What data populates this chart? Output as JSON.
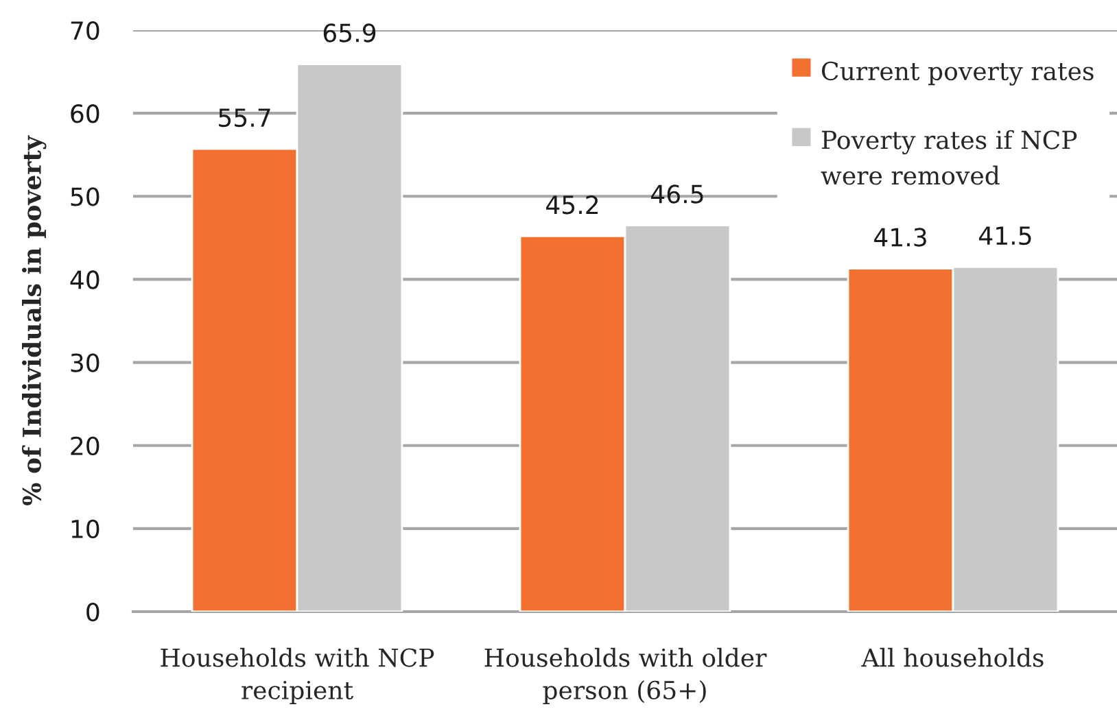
{
  "chart_data": {
    "type": "bar",
    "ylabel": "% of Individuals in poverty",
    "categories": [
      "Households with NCP recipient",
      "Households with older person (65+)",
      "All households"
    ],
    "series": [
      {
        "name": "Current poverty rates",
        "color": "#f37130",
        "values": [
          55.7,
          45.2,
          41.3
        ]
      },
      {
        "name": "Poverty rates if NCP were removed",
        "color": "#c8c8c8",
        "values": [
          65.9,
          46.5,
          41.5
        ]
      }
    ],
    "ylim": [
      0,
      70
    ],
    "yticks": [
      0,
      10,
      20,
      30,
      40,
      50,
      60,
      70
    ],
    "grid": "y",
    "legend": "top right",
    "data_labels": true
  }
}
